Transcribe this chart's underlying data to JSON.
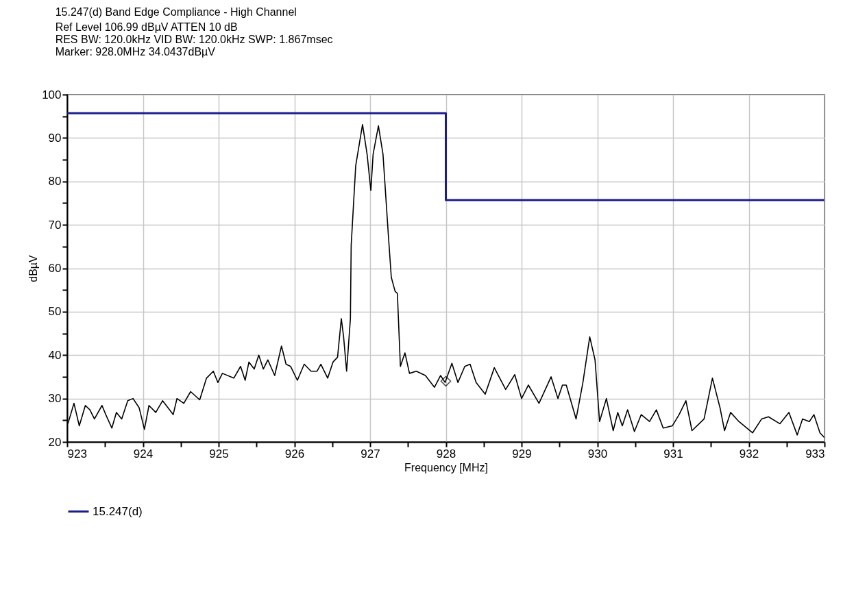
{
  "chart_data": {
    "type": "line",
    "title": "15.247(d) Band Edge Compliance - High Channel",
    "annotations": [
      "Ref Level 106.99 dBµV    ATTEN 10 dB",
      "RES BW: 120.0kHz  VID BW: 120.0kHz  SWP: 1.867msec",
      "Marker: 928.0MHz  34.0437dBµV"
    ],
    "xlabel": "Frequency [MHz]",
    "ylabel": "dBµV",
    "xlim": [
      923,
      933
    ],
    "ylim": [
      20,
      100
    ],
    "xticks": [
      923,
      {
        "value": 923.5,
        "label": null
      },
      924,
      {
        "value": 924.5,
        "label": null
      },
      925,
      {
        "value": 925.5,
        "label": null
      },
      926,
      {
        "value": 926.5,
        "label": null
      },
      927,
      {
        "value": 927.5,
        "label": null
      },
      928,
      {
        "value": 928.5,
        "label": null
      },
      929,
      {
        "value": 929.5,
        "label": null
      },
      930,
      {
        "value": 930.5,
        "label": null
      },
      931,
      {
        "value": 931.5,
        "label": null
      },
      932,
      {
        "value": 932.5,
        "label": null
      },
      933
    ],
    "yticks": [
      20,
      {
        "value": 25,
        "label": null
      },
      30,
      {
        "value": 35,
        "label": null
      },
      40,
      {
        "value": 45,
        "label": null
      },
      50,
      {
        "value": 55,
        "label": null
      },
      60,
      {
        "value": 65,
        "label": null
      },
      70,
      {
        "value": 75,
        "label": null
      },
      80,
      {
        "value": 85,
        "label": null
      },
      90,
      {
        "value": 95,
        "label": null
      },
      100
    ],
    "grid": true,
    "legend": "bottom",
    "series": [
      {
        "color": "#000000",
        "x": [
          923.01,
          923.09,
          923.16,
          923.24,
          923.3,
          923.36,
          923.46,
          923.51,
          923.59,
          923.65,
          923.72,
          923.8,
          923.87,
          923.95,
          924.02,
          924.08,
          924.17,
          924.26,
          924.4,
          924.45,
          924.54,
          924.63,
          924.75,
          924.84,
          924.93,
          924.99,
          925.05,
          925.2,
          925.29,
          925.35,
          925.4,
          925.47,
          925.53,
          925.59,
          925.65,
          925.74,
          925.83,
          925.89,
          925.95,
          926.04,
          926.13,
          926.22,
          926.3,
          926.35,
          926.44,
          926.51,
          926.57,
          926.62,
          926.65,
          926.69,
          926.74,
          926.75,
          926.81,
          926.9,
          926.96,
          927.01,
          927.04,
          927.11,
          927.17,
          927.24,
          927.28,
          927.33,
          927.36,
          927.4,
          927.46,
          927.52,
          927.61,
          927.73,
          927.85,
          927.93,
          927.99,
          928.08,
          928.16,
          928.25,
          928.32,
          928.4,
          928.52,
          928.64,
          928.79,
          928.91,
          929,
          929.09,
          929.23,
          929.39,
          929.48,
          929.54,
          929.59,
          929.72,
          929.81,
          929.9,
          929.97,
          930.03,
          930.12,
          930.21,
          930.27,
          930.33,
          930.4,
          930.49,
          930.58,
          930.69,
          930.78,
          930.87,
          930.99,
          931.08,
          931.17,
          931.25,
          931.41,
          931.52,
          931.62,
          931.68,
          931.76,
          931.87,
          932.05,
          932.17,
          932.26,
          932.41,
          932.53,
          932.64,
          932.71,
          932.8,
          932.86,
          932.94,
          933
        ],
        "values": [
          24.2,
          28.9,
          23.7,
          28.4,
          27.4,
          25.3,
          28.4,
          26.3,
          23.2,
          26.8,
          25.3,
          29.5,
          30,
          27.9,
          22.9,
          28.4,
          26.8,
          29.5,
          26.3,
          30,
          28.9,
          31.6,
          29.7,
          34.7,
          36.3,
          33.7,
          35.8,
          34.7,
          37.4,
          34.2,
          38.4,
          36.8,
          40,
          36.8,
          38.9,
          35.3,
          42.1,
          37.9,
          37.4,
          34.2,
          37.9,
          36.3,
          36.3,
          37.9,
          34.7,
          38.4,
          39.5,
          48.4,
          44.2,
          36.3,
          48.4,
          65.2,
          83.6,
          93.1,
          86.3,
          77.9,
          86.3,
          92.8,
          86.3,
          67.9,
          57.9,
          54.7,
          54.2,
          37.4,
          40.5,
          35.8,
          36.3,
          35.3,
          32.6,
          35.3,
          33.7,
          38.1,
          33.7,
          37.4,
          37.9,
          33.7,
          31,
          37.1,
          32.1,
          35.5,
          30,
          33.1,
          28.9,
          35,
          30,
          33.1,
          33.1,
          25.3,
          33.7,
          44.2,
          38.9,
          24.7,
          30,
          22.6,
          26.8,
          23.7,
          27.4,
          22.4,
          26.3,
          24.7,
          27.4,
          23.2,
          23.7,
          26.3,
          29.5,
          22.6,
          25.3,
          34.7,
          27.9,
          22.6,
          26.8,
          24.7,
          22.1,
          25.3,
          25.8,
          24.2,
          26.8,
          21.6,
          25.3,
          24.7,
          26.3,
          22.1,
          21
        ]
      },
      {
        "name": "15.247(d)",
        "color": "#1c1c8f",
        "x": [
          923,
          928,
          928,
          933
        ],
        "values": [
          95.7,
          95.7,
          75.7,
          75.7
        ]
      },
      {
        "type": "scatter",
        "marker": "diamond",
        "color": "#000000",
        "x": [
          928
        ],
        "values": [
          34.0
        ]
      }
    ]
  }
}
